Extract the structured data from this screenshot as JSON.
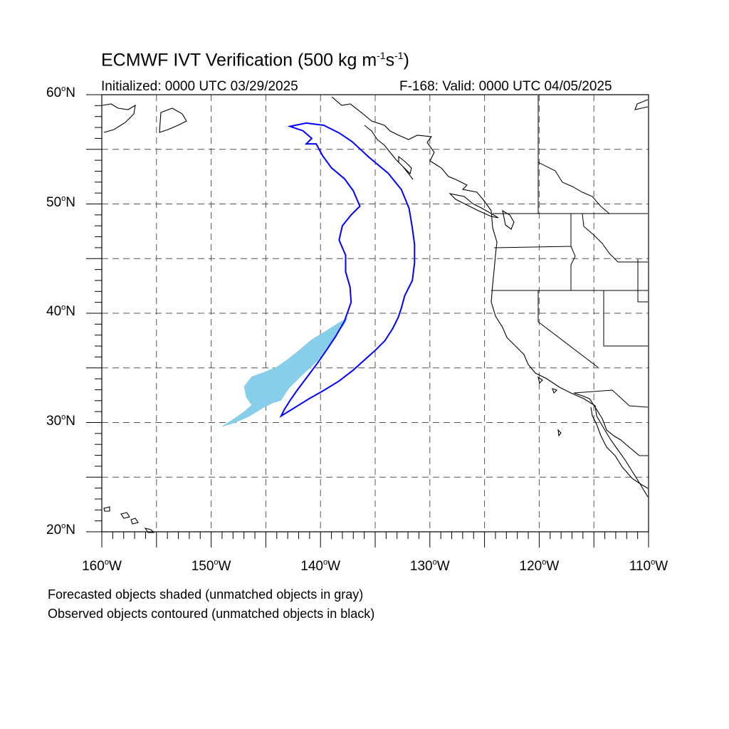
{
  "title": {
    "main_prefix": "ECMWF IVT Verification (500 kg m",
    "sup1": "-1",
    "mid": "s",
    "sup2": "-1",
    "suffix": ")"
  },
  "subtitle_left": "Initialized: 0000 UTC 03/29/2025",
  "subtitle_right": "F-168: Valid: 0000 UTC 04/05/2025",
  "map": {
    "lon_range": [
      -160,
      -110
    ],
    "lat_range": [
      20,
      60
    ],
    "lat_labels": [
      {
        "lat": 60,
        "num": "60",
        "hemi": "N"
      },
      {
        "lat": 50,
        "num": "50",
        "hemi": "N"
      },
      {
        "lat": 40,
        "num": "40",
        "hemi": "N"
      },
      {
        "lat": 30,
        "num": "30",
        "hemi": "N"
      },
      {
        "lat": 20,
        "num": "20",
        "hemi": "N"
      }
    ],
    "lon_labels": [
      {
        "lon": -160,
        "num": "160",
        "hemi": "W"
      },
      {
        "lon": -150,
        "num": "150",
        "hemi": "W"
      },
      {
        "lon": -140,
        "num": "140",
        "hemi": "W"
      },
      {
        "lon": -130,
        "num": "130",
        "hemi": "W"
      },
      {
        "lon": -120,
        "num": "120",
        "hemi": "W"
      },
      {
        "lon": -110,
        "num": "110",
        "hemi": "W"
      }
    ],
    "grid_interval_deg": 5,
    "grid_style": "dashed",
    "colors": {
      "forecast_fill": "#87ceeb",
      "observed_contour": "#0000ff",
      "coastline": "#000000"
    },
    "forecast_object": {
      "name": "Forecasted object",
      "polygon": [
        [
          -149.1,
          29.6
        ],
        [
          -148.0,
          30.3
        ],
        [
          -147.0,
          31.0
        ],
        [
          -146.3,
          31.6
        ],
        [
          -146.8,
          32.3
        ],
        [
          -147.0,
          33.3
        ],
        [
          -146.3,
          34.2
        ],
        [
          -145.2,
          34.6
        ],
        [
          -144.0,
          35.1
        ],
        [
          -143.0,
          35.8
        ],
        [
          -142.0,
          36.6
        ],
        [
          -140.8,
          37.6
        ],
        [
          -139.5,
          38.4
        ],
        [
          -138.4,
          39.1
        ],
        [
          -137.5,
          39.6
        ],
        [
          -137.3,
          40.0
        ],
        [
          -137.8,
          39.0
        ],
        [
          -138.6,
          37.9
        ],
        [
          -139.4,
          36.8
        ],
        [
          -140.3,
          35.6
        ],
        [
          -141.6,
          34.4
        ],
        [
          -142.9,
          33.1
        ],
        [
          -143.6,
          32.0
        ],
        [
          -144.3,
          31.8
        ],
        [
          -145.3,
          31.3
        ],
        [
          -146.6,
          30.5
        ],
        [
          -148.0,
          29.9
        ]
      ]
    },
    "observed_object": {
      "name": "Observed object",
      "polygon": [
        [
          -143.6,
          30.6
        ],
        [
          -142.3,
          31.4
        ],
        [
          -141.0,
          32.2
        ],
        [
          -139.6,
          33.0
        ],
        [
          -138.3,
          33.8
        ],
        [
          -137.0,
          34.8
        ],
        [
          -135.9,
          35.8
        ],
        [
          -135.0,
          36.6
        ],
        [
          -134.1,
          37.5
        ],
        [
          -133.4,
          38.6
        ],
        [
          -132.9,
          39.6
        ],
        [
          -132.6,
          40.5
        ],
        [
          -132.3,
          41.6
        ],
        [
          -131.6,
          43.0
        ],
        [
          -131.4,
          44.6
        ],
        [
          -131.4,
          46.3
        ],
        [
          -131.6,
          47.8
        ],
        [
          -131.9,
          49.6
        ],
        [
          -132.6,
          51.3
        ],
        [
          -133.8,
          52.8
        ],
        [
          -135.6,
          54.3
        ],
        [
          -137.1,
          55.7
        ],
        [
          -138.3,
          56.5
        ],
        [
          -139.7,
          57.2
        ],
        [
          -141.3,
          57.4
        ],
        [
          -142.8,
          57.1
        ],
        [
          -141.6,
          56.7
        ],
        [
          -140.8,
          56.0
        ],
        [
          -141.3,
          55.5
        ],
        [
          -140.4,
          55.5
        ],
        [
          -139.8,
          54.4
        ],
        [
          -139.0,
          53.3
        ],
        [
          -137.8,
          52.3
        ],
        [
          -137.0,
          51.2
        ],
        [
          -136.4,
          49.8
        ],
        [
          -137.2,
          49.0
        ],
        [
          -138.0,
          48.0
        ],
        [
          -138.3,
          46.7
        ],
        [
          -137.7,
          45.3
        ],
        [
          -137.7,
          43.8
        ],
        [
          -137.3,
          42.4
        ],
        [
          -137.2,
          41.0
        ],
        [
          -137.8,
          39.3
        ],
        [
          -138.6,
          37.9
        ],
        [
          -139.4,
          36.7
        ],
        [
          -140.3,
          35.4
        ],
        [
          -141.2,
          34.2
        ],
        [
          -142.1,
          33.0
        ],
        [
          -142.8,
          32.0
        ],
        [
          -143.3,
          31.2
        ]
      ]
    }
  },
  "footnotes": [
    "Forecasted objects shaded (unmatched objects in gray)",
    "Observed objects contoured (unmatched objects in black)"
  ]
}
